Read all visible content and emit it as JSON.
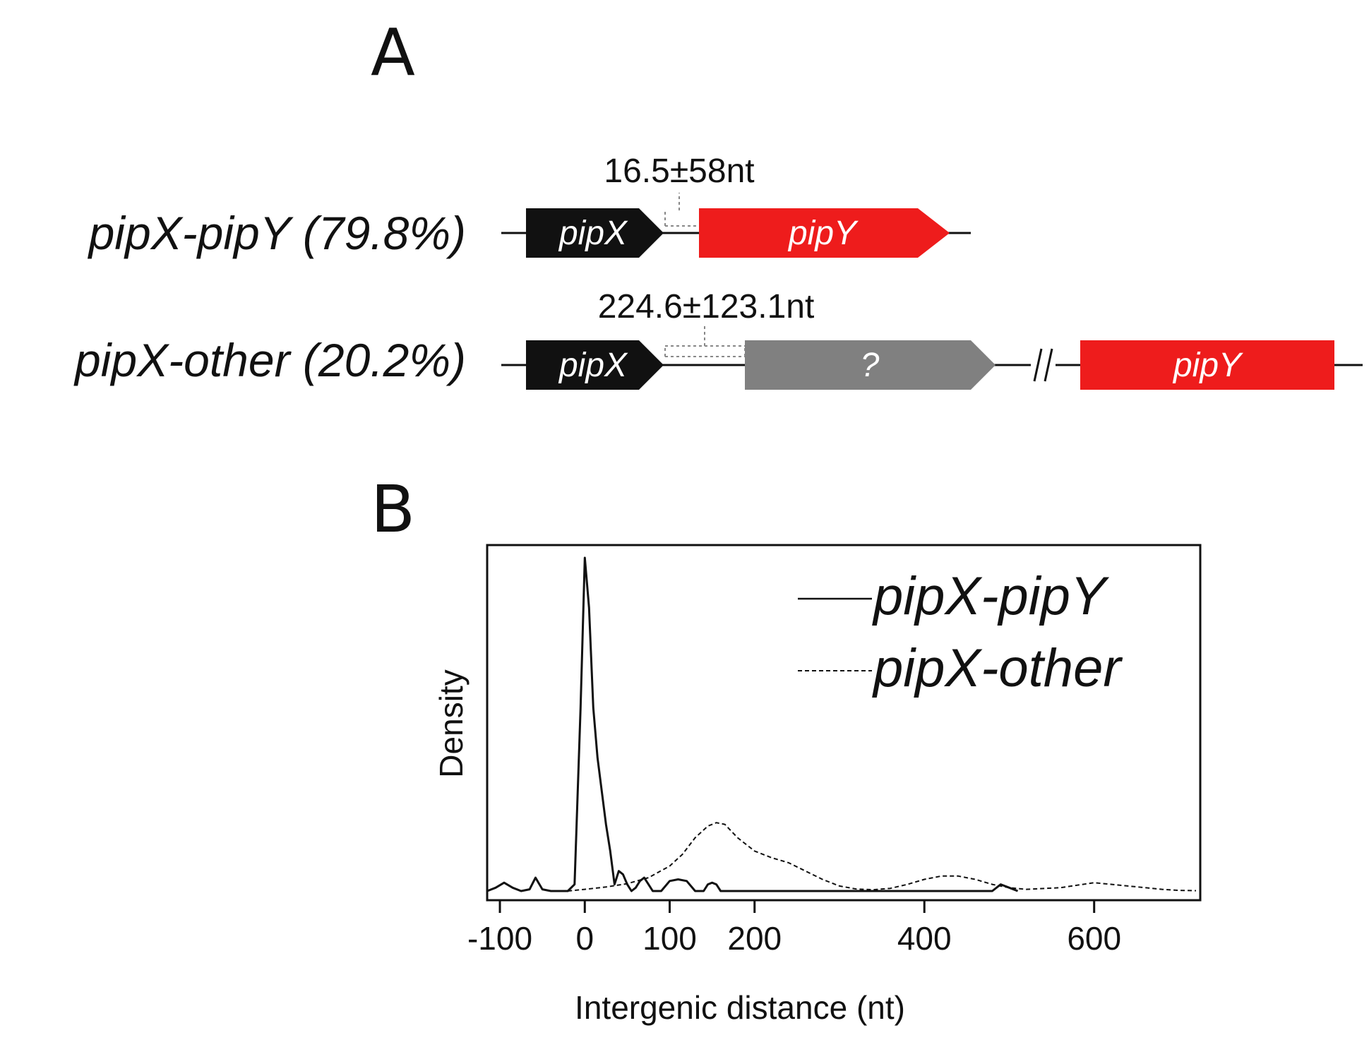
{
  "panels": {
    "a": "A",
    "b": "B"
  },
  "operon_rows": [
    {
      "label": "pipX-pipY (79.8%)",
      "distance": "16.5±58nt",
      "genes": [
        {
          "name": "pipX",
          "color": "#111111"
        },
        {
          "name": "pipY",
          "color": "#ee1c1c"
        }
      ]
    },
    {
      "label": "pipX-other (20.2%)",
      "distance": "224.6±123.1nt",
      "genes": [
        {
          "name": "pipX",
          "color": "#111111"
        },
        {
          "name": "?",
          "color": "#808080"
        },
        {
          "name": "pipY",
          "color": "#ee1c1c"
        }
      ]
    }
  ],
  "chart_data": {
    "type": "line",
    "title": "",
    "xlabel": "Intergenic distance (nt)",
    "ylabel": "Density",
    "xlim": [
      -115,
      725
    ],
    "ylim": [
      0,
      1.0
    ],
    "xticks": [
      -100,
      0,
      100,
      200,
      400,
      600
    ],
    "xtick_labels": [
      "-100",
      "0",
      "100",
      "200",
      "400",
      "600"
    ],
    "legend_position": "top-right",
    "series": [
      {
        "name": "pipX-pipY",
        "style": "solid",
        "x": [
          -115,
          -105,
          -95,
          -85,
          -75,
          -65,
          -58,
          -50,
          -40,
          -30,
          -20,
          -12,
          -5,
          0,
          5,
          10,
          15,
          20,
          25,
          30,
          35,
          40,
          45,
          50,
          55,
          60,
          65,
          70,
          75,
          80,
          90,
          100,
          110,
          120,
          130,
          140,
          145,
          150,
          155,
          160,
          165,
          170,
          200,
          300,
          400,
          480,
          490,
          500,
          510
        ],
        "y": [
          0.0,
          0.01,
          0.025,
          0.01,
          0.0,
          0.005,
          0.04,
          0.005,
          0.0,
          0.0,
          0.0,
          0.02,
          0.55,
          1.0,
          0.85,
          0.55,
          0.4,
          0.3,
          0.2,
          0.12,
          0.02,
          0.06,
          0.05,
          0.02,
          0.0,
          0.01,
          0.03,
          0.04,
          0.02,
          0.0,
          0.0,
          0.03,
          0.035,
          0.03,
          0.0,
          0.0,
          0.02,
          0.025,
          0.02,
          0.0,
          0.0,
          0.0,
          0.0,
          0.0,
          0.0,
          0.0,
          0.02,
          0.01,
          0.0
        ]
      },
      {
        "name": "pipX-other",
        "style": "dashed",
        "x": [
          -20,
          0,
          25,
          50,
          75,
          100,
          115,
          130,
          145,
          155,
          165,
          180,
          200,
          220,
          240,
          260,
          280,
          300,
          320,
          340,
          360,
          380,
          400,
          420,
          440,
          460,
          480,
          500,
          520,
          560,
          600,
          640,
          680,
          700,
          720
        ],
        "y": [
          0.0,
          0.005,
          0.012,
          0.022,
          0.04,
          0.075,
          0.11,
          0.16,
          0.195,
          0.205,
          0.2,
          0.16,
          0.12,
          0.1,
          0.085,
          0.06,
          0.035,
          0.015,
          0.006,
          0.004,
          0.008,
          0.02,
          0.035,
          0.045,
          0.045,
          0.035,
          0.02,
          0.01,
          0.005,
          0.01,
          0.025,
          0.015,
          0.005,
          0.002,
          0.001
        ]
      }
    ]
  }
}
